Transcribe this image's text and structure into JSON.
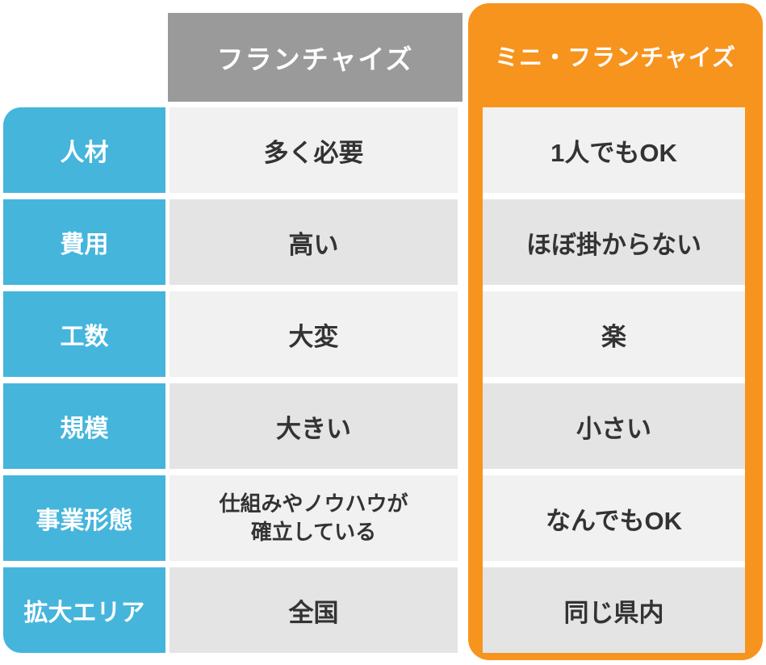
{
  "table": {
    "column_headers": {
      "franchise": "フランチャイズ",
      "mini_franchise": "ミニ・フランチャイズ"
    },
    "rows": [
      {
        "label": "人材",
        "franchise": "多く必要",
        "mini": "1人でもOK"
      },
      {
        "label": "費用",
        "franchise": "高い",
        "mini": "ほぼ掛からない"
      },
      {
        "label": "工数",
        "franchise": "大変",
        "mini": "楽"
      },
      {
        "label": "規模",
        "franchise": "大きい",
        "mini": "小さい"
      },
      {
        "label": "事業形態",
        "franchise_lines": [
          "仕組みやノウハウが",
          "確立している"
        ],
        "mini": "なんでもOK"
      },
      {
        "label": "拡大エリア",
        "franchise": "全国",
        "mini": "同じ県内"
      }
    ],
    "colors": {
      "accent_blue": "#45b5dc",
      "accent_orange": "#f7941e",
      "header_gray": "#9a9a9a",
      "cell_light": "#f1f1f1",
      "cell_dark": "#e4e4e4",
      "text_dark": "#333333"
    }
  }
}
